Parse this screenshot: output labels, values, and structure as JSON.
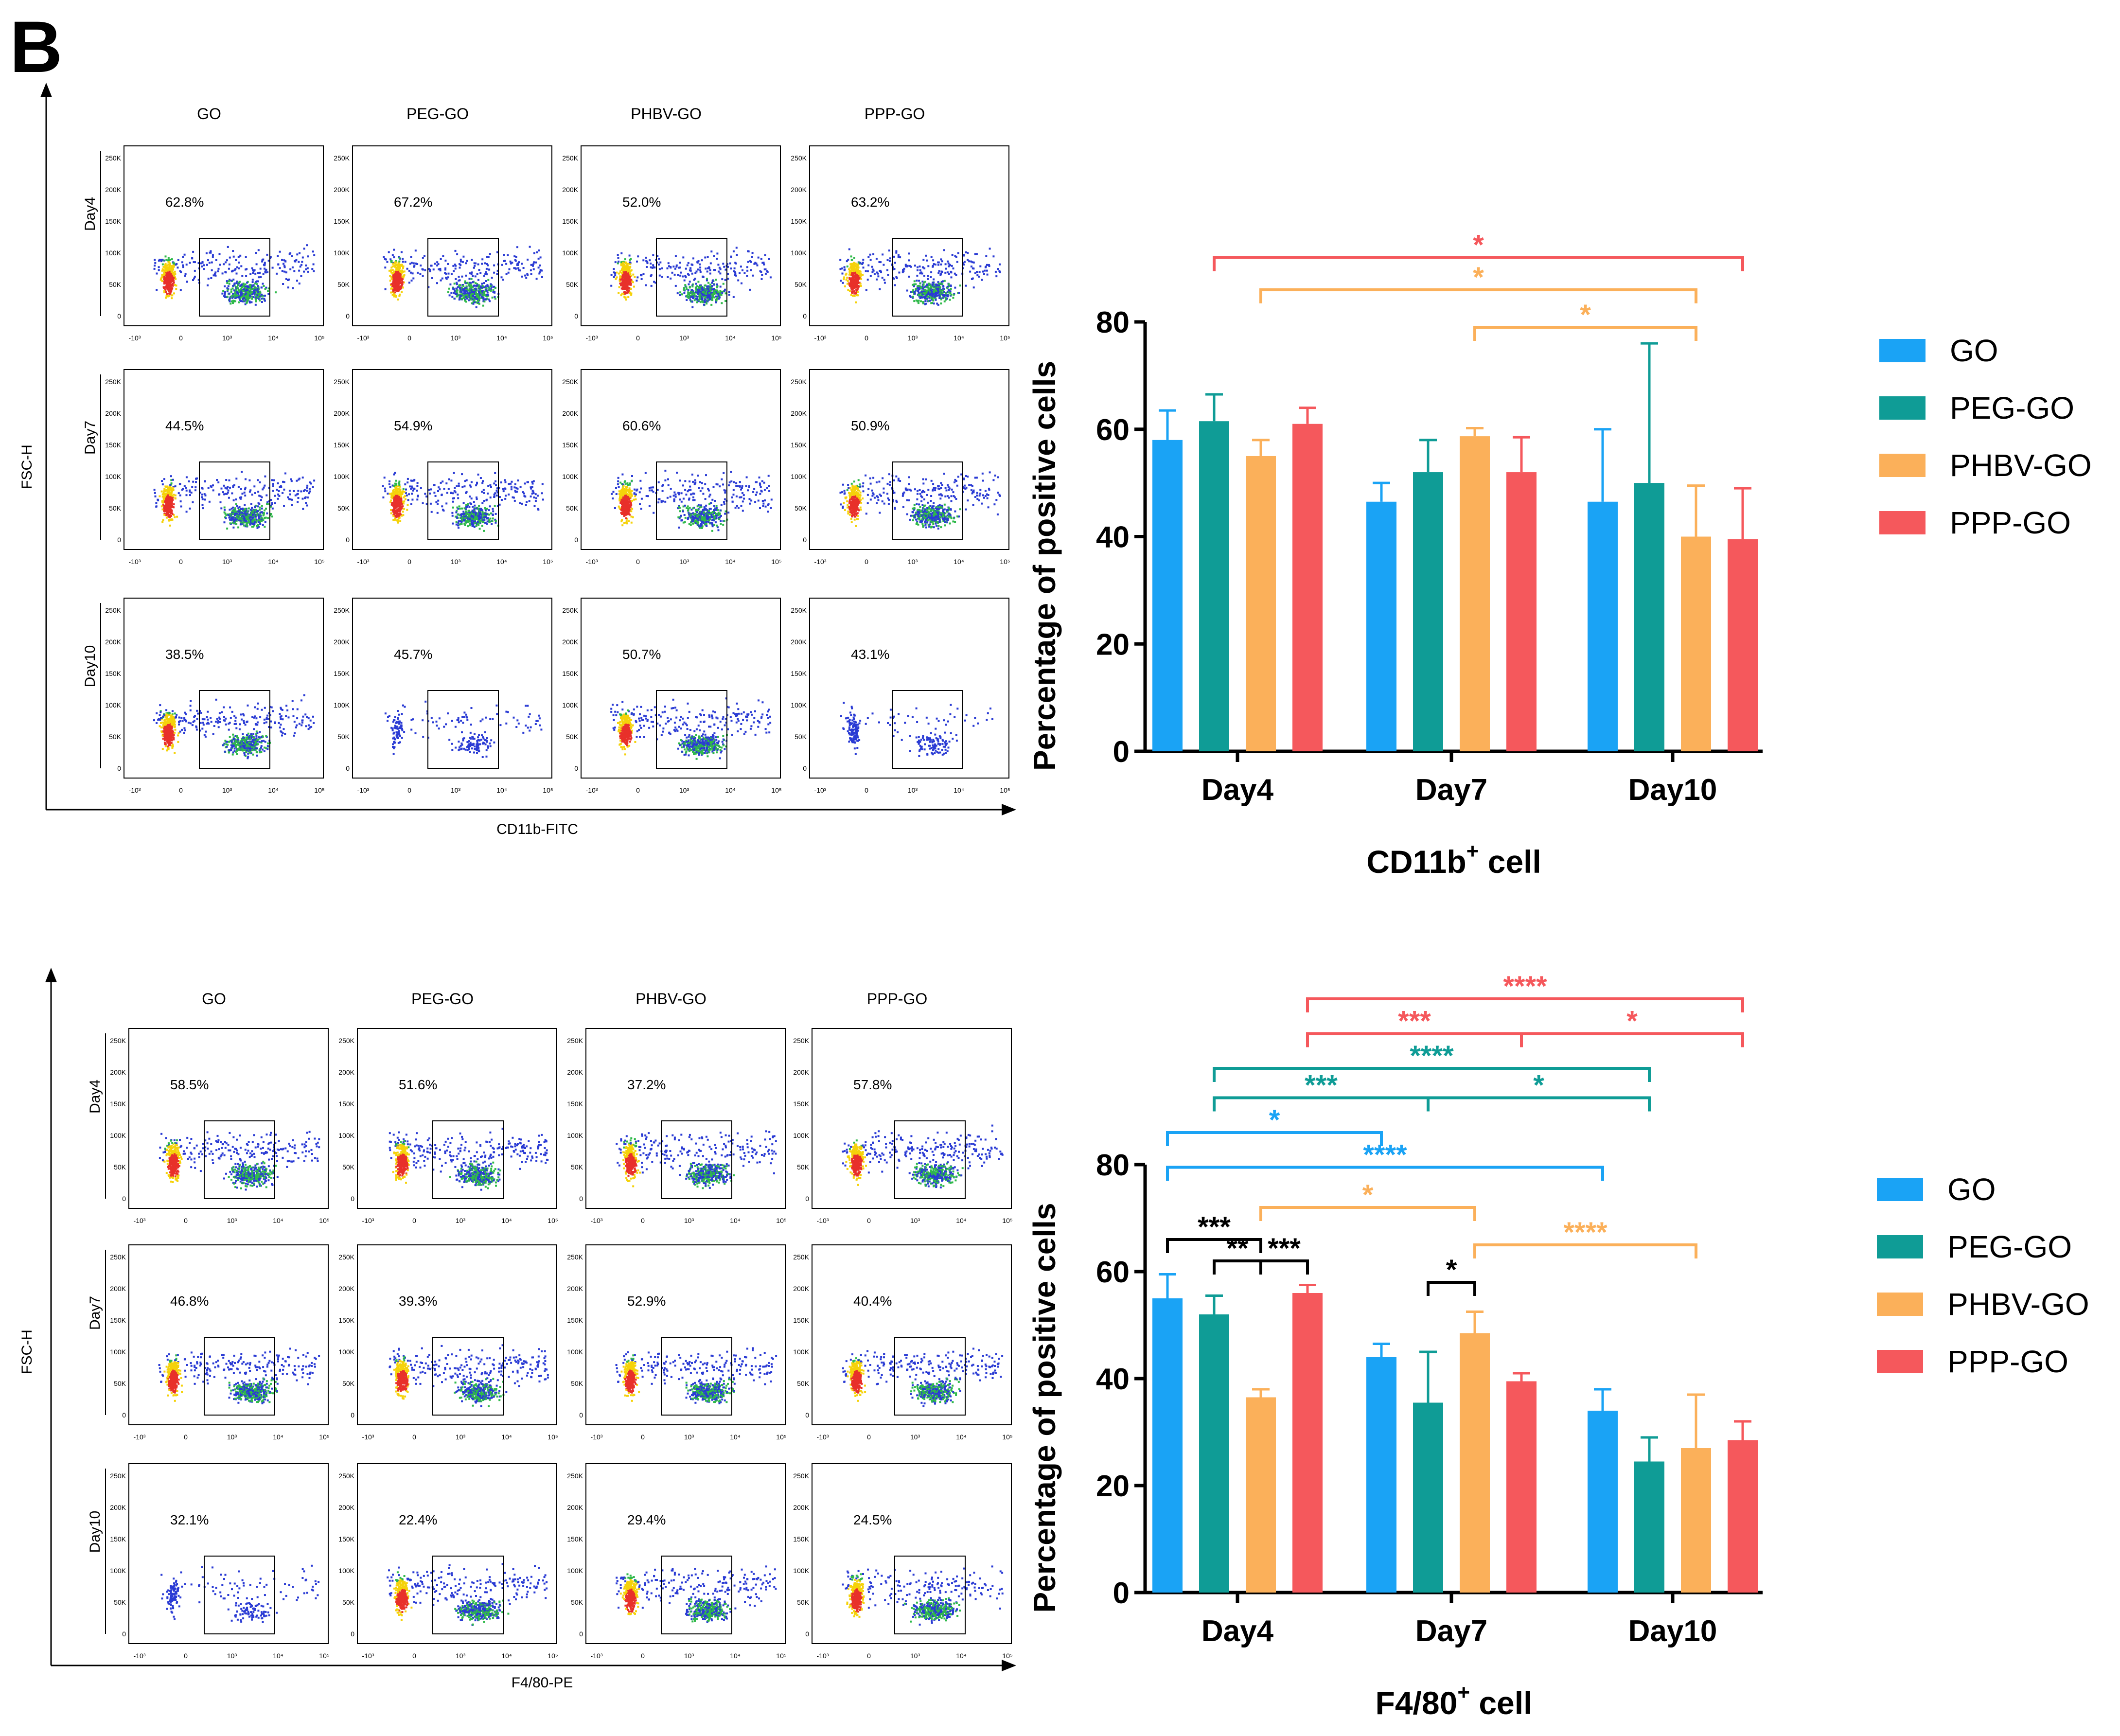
{
  "panel_label": "B",
  "colors": {
    "GO": "#1aa3f5",
    "PEG-GO": "#0f9c96",
    "PHBV-GO": "#fbb05a",
    "PPP-GO": "#f5585c",
    "black": "#000000"
  },
  "flow_panels": [
    {
      "y_label": "FSC-H",
      "x_label": "CD11b-FITC",
      "columns": [
        "GO",
        "PEG-GO",
        "PHBV-GO",
        "PPP-GO"
      ],
      "rows": [
        "Day4",
        "Day7",
        "Day10"
      ],
      "percentages": [
        [
          "62.8%",
          "67.2%",
          "52.0%",
          "63.2%"
        ],
        [
          "44.5%",
          "54.9%",
          "60.6%",
          "50.9%"
        ],
        [
          "38.5%",
          "45.7%",
          "50.7%",
          "43.1%"
        ]
      ]
    },
    {
      "y_label": "FSC-H",
      "x_label": "F4/80-PE",
      "columns": [
        "GO",
        "PEG-GO",
        "PHBV-GO",
        "PPP-GO"
      ],
      "rows": [
        "Day4",
        "Day7",
        "Day10"
      ],
      "percentages": [
        [
          "58.5%",
          "51.6%",
          "37.2%",
          "57.8%"
        ],
        [
          "46.8%",
          "39.3%",
          "52.9%",
          "40.4%"
        ],
        [
          "32.1%",
          "22.4%",
          "29.4%",
          "24.5%"
        ]
      ]
    }
  ],
  "flow_axis": {
    "y_ticks": [
      "250K",
      "200K",
      "150K",
      "100K",
      "50K",
      "0"
    ],
    "x_ticks": [
      "-10³",
      "0",
      "10³",
      "10⁴",
      "10⁵"
    ]
  },
  "chart_data": [
    {
      "type": "bar",
      "title": "CD11b",
      "title_sup": "+",
      "title_suffix": " cell",
      "ylabel": "Percentage of positive cells",
      "xlabel": "",
      "ylim": [
        0,
        80
      ],
      "yticks": [
        "0",
        "20",
        "40",
        "60",
        "80"
      ],
      "categories": [
        "Day4",
        "Day7",
        "Day10"
      ],
      "legend_position": "right",
      "series": [
        {
          "name": "GO",
          "values": [
            58,
            46.5,
            46.5
          ],
          "errors": [
            5.5,
            3.5,
            13.5
          ]
        },
        {
          "name": "PEG-GO",
          "values": [
            61.5,
            52,
            50
          ],
          "errors": [
            5,
            6,
            26
          ]
        },
        {
          "name": "PHBV-GO",
          "values": [
            55,
            58.7,
            40
          ],
          "errors": [
            3,
            1.5,
            9.5
          ]
        },
        {
          "name": "PPP-GO",
          "values": [
            61,
            52,
            39.5
          ],
          "errors": [
            3,
            6.5,
            9.5
          ]
        }
      ],
      "significance": [
        {
          "label": "*",
          "color": "PPP-GO",
          "from": [
            0,
            1
          ],
          "to": [
            2,
            3
          ],
          "level": 92
        },
        {
          "label": "*",
          "color": "PHBV-GO",
          "from": [
            0,
            2
          ],
          "to": [
            2,
            2
          ],
          "level": 86
        },
        {
          "label": "*",
          "color": "PHBV-GO",
          "from": [
            1,
            2
          ],
          "to": [
            2,
            2
          ],
          "level": 79
        }
      ]
    },
    {
      "type": "bar",
      "title": "F4/80",
      "title_sup": "+",
      "title_suffix": " cell",
      "ylabel": "Percentage of positive cells",
      "xlabel": "",
      "ylim": [
        0,
        80
      ],
      "yticks": [
        "0",
        "20",
        "40",
        "60",
        "80"
      ],
      "categories": [
        "Day4",
        "Day7",
        "Day10"
      ],
      "legend_position": "right",
      "series": [
        {
          "name": "GO",
          "values": [
            55,
            44,
            34
          ],
          "errors": [
            4.5,
            2.5,
            4
          ]
        },
        {
          "name": "PEG-GO",
          "values": [
            52,
            35.5,
            24.5
          ],
          "errors": [
            3.5,
            9.5,
            4.5
          ]
        },
        {
          "name": "PHBV-GO",
          "values": [
            36.5,
            48.5,
            27
          ],
          "errors": [
            1.5,
            4,
            10
          ]
        },
        {
          "name": "PPP-GO",
          "values": [
            56,
            39.5,
            28.5
          ],
          "errors": [
            1.5,
            1.5,
            3.5
          ]
        }
      ],
      "significance": [
        {
          "label": "****",
          "color": "PPP-GO",
          "from": [
            0,
            3
          ],
          "to": [
            2,
            3
          ],
          "level": 111
        },
        {
          "label": "***",
          "color": "PPP-GO",
          "from": [
            0,
            3
          ],
          "to": [
            1,
            3
          ],
          "level": 104.5
        },
        {
          "label": "*",
          "color": "PPP-GO",
          "from": [
            1,
            3
          ],
          "to": [
            2,
            3
          ],
          "level": 104.5
        },
        {
          "label": "****",
          "color": "PEG-GO",
          "from": [
            0,
            1
          ],
          "to": [
            2,
            1
          ],
          "level": 98
        },
        {
          "label": "***",
          "color": "PEG-GO",
          "from": [
            0,
            1
          ],
          "to": [
            1,
            1
          ],
          "level": 92.5
        },
        {
          "label": "*",
          "color": "PEG-GO",
          "from": [
            1,
            1
          ],
          "to": [
            2,
            1
          ],
          "level": 92.5
        },
        {
          "label": "*",
          "color": "GO",
          "from": [
            0,
            0
          ],
          "to": [
            1,
            0
          ],
          "level": 86
        },
        {
          "label": "****",
          "color": "GO",
          "from": [
            0,
            0
          ],
          "to": [
            2,
            0
          ],
          "level": 79.5
        },
        {
          "label": "*",
          "color": "PHBV-GO",
          "from": [
            0,
            2
          ],
          "to": [
            1,
            2
          ],
          "level": 72
        },
        {
          "label": "****",
          "color": "PHBV-GO",
          "from": [
            1,
            2
          ],
          "to": [
            2,
            2
          ],
          "level": 65
        },
        {
          "label": "***",
          "color": "black",
          "from": [
            0,
            0
          ],
          "to": [
            0,
            2
          ],
          "level": 66
        },
        {
          "label": "**",
          "color": "black",
          "from": [
            0,
            1
          ],
          "to": [
            0,
            2
          ],
          "level": 62
        },
        {
          "label": "***",
          "color": "black",
          "from": [
            0,
            2
          ],
          "to": [
            0,
            3
          ],
          "level": 62
        },
        {
          "label": "*",
          "color": "black",
          "from": [
            1,
            1
          ],
          "to": [
            1,
            2
          ],
          "level": 58
        }
      ]
    }
  ]
}
